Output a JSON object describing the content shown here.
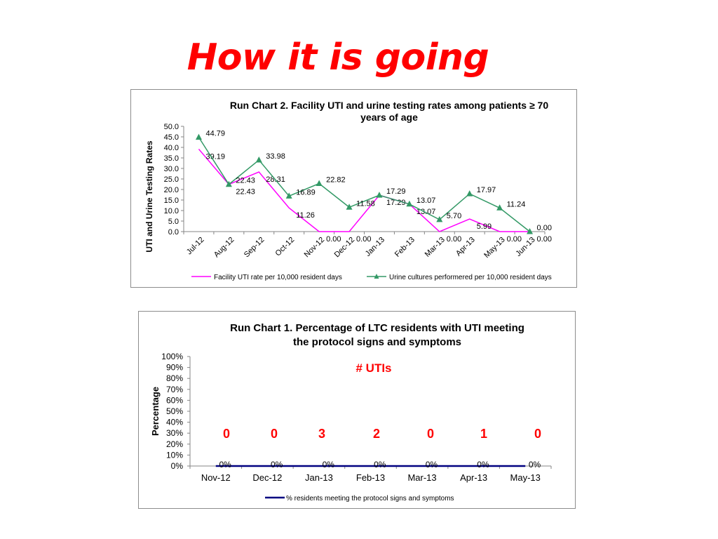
{
  "slide": {
    "title": "How it is going"
  },
  "chart_data": [
    {
      "type": "line",
      "title": "Run Chart 2. Facility UTI and urine testing rates among patients ≥ 70 years of age",
      "title_lines": [
        "Run Chart 2. Facility UTI and urine testing rates among patients ≥ 70",
        "years of age"
      ],
      "ylabel": "UTI and Urine Testing Rates",
      "xlabel": "",
      "categories": [
        "Jul-12",
        "Aug-12",
        "Sep-12",
        "Oct-12",
        "Nov-12",
        "Dec-12",
        "Jan-13",
        "Feb-13",
        "Mar-13",
        "Apr-13",
        "May-13",
        "Jun-13"
      ],
      "ylim": [
        0,
        50
      ],
      "yticks": [
        "0.0",
        "5.0",
        "10.0",
        "15.0",
        "20.0",
        "25.0",
        "30.0",
        "35.0",
        "40.0",
        "45.0",
        "50.0"
      ],
      "grid": false,
      "legend_position": "bottom",
      "series": [
        {
          "name": "Facility UTI rate per 10,000 resident days",
          "color": "#ff00ff",
          "marker": "none",
          "values": [
            39.19,
            22.43,
            28.31,
            11.26,
            0.0,
            0.0,
            17.29,
            13.07,
            0.0,
            5.99,
            0.0,
            0.0
          ],
          "labels": [
            "39.19",
            "22.43",
            "28.31",
            "11.26",
            "0.00",
            "0.00",
            "17.29",
            "13.07",
            "0.00",
            "5.99",
            "0.00",
            "0.00"
          ]
        },
        {
          "name": "Urine cultures performered per 10,000 resident days",
          "color": "#339966",
          "marker": "triangle",
          "values": [
            44.79,
            22.43,
            33.98,
            16.89,
            22.82,
            11.58,
            17.29,
            13.07,
            5.7,
            17.97,
            11.24,
            0.0
          ],
          "labels": [
            "44.79",
            "22.43",
            "33.98",
            "16.89",
            "22.82",
            "11.58",
            "17.29",
            "13.07",
            "5.70",
            "17.97",
            "11.24",
            "0.00"
          ]
        }
      ]
    },
    {
      "type": "line",
      "title": "Run Chart 1.  Percentage of LTC residents with UTI meeting the protocol signs and symptoms",
      "title_lines": [
        "Run Chart 1.  Percentage of LTC residents with UTI meeting",
        "the protocol signs and symptoms"
      ],
      "ylabel": "Percentage",
      "xlabel": "",
      "categories": [
        "Nov-12",
        "Dec-12",
        "Jan-13",
        "Feb-13",
        "Mar-13",
        "Apr-13",
        "May-13"
      ],
      "ylim": [
        0,
        100
      ],
      "yticks": [
        "0%",
        "10%",
        "20%",
        "30%",
        "40%",
        "50%",
        "60%",
        "70%",
        "80%",
        "90%",
        "100%"
      ],
      "grid": false,
      "legend_position": "bottom",
      "series": [
        {
          "name": "% residents meeting the protocol signs and symptoms",
          "color": "#000080",
          "marker": "none",
          "values": [
            0,
            0,
            0,
            0,
            0,
            0,
            0
          ],
          "labels": [
            "0%",
            "0%",
            "0%",
            "0%",
            "0%",
            "0%",
            "0%"
          ]
        }
      ],
      "annotation_title": "# UTIs",
      "annotation_color": "#ff0000",
      "annotation_counts": [
        "0",
        "0",
        "3",
        "2",
        "0",
        "1",
        "0"
      ]
    }
  ]
}
